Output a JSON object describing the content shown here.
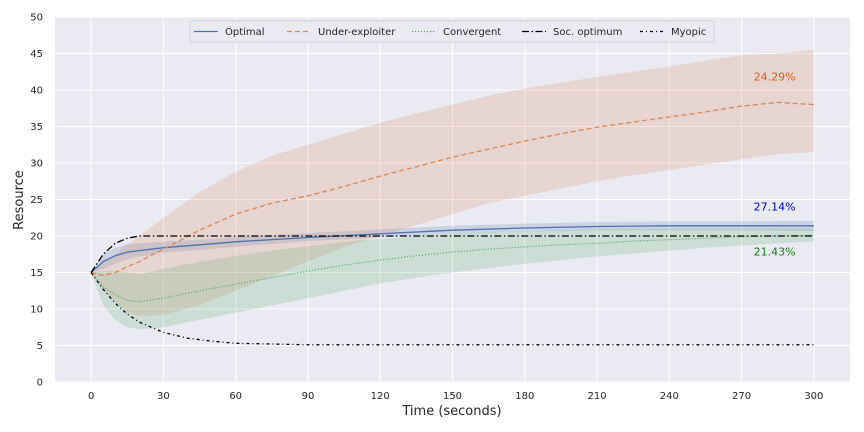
{
  "chart_data": {
    "type": "line",
    "title": "",
    "xlabel": "Time (seconds)",
    "ylabel": "Resource",
    "xlim": [
      -15,
      315
    ],
    "ylim": [
      0,
      50
    ],
    "xticks": [
      0,
      30,
      60,
      90,
      120,
      150,
      180,
      210,
      240,
      270,
      300
    ],
    "yticks": [
      0,
      5,
      10,
      15,
      20,
      25,
      30,
      35,
      40,
      45,
      50
    ],
    "grid": true,
    "background": "#eaeaf2",
    "legend": {
      "placement": "top-center",
      "columns": 5
    },
    "series": [
      {
        "name": "Optimal",
        "color": "#4c72b0",
        "dash": "solid",
        "x": [
          0,
          5,
          10,
          15,
          20,
          30,
          45,
          60,
          90,
          120,
          150,
          180,
          210,
          240,
          270,
          300
        ],
        "y": [
          15,
          16.5,
          17.3,
          17.8,
          18.0,
          18.4,
          18.8,
          19.2,
          19.8,
          20.3,
          20.8,
          21.1,
          21.3,
          21.4,
          21.4,
          21.4
        ],
        "band_low": [
          15,
          15.5,
          16.2,
          16.8,
          17.2,
          17.7,
          18.1,
          18.5,
          19.3,
          19.8,
          20.3,
          20.6,
          20.8,
          20.8,
          20.8,
          20.7
        ],
        "band_high": [
          15,
          17.5,
          18.4,
          18.9,
          19.0,
          19.2,
          19.5,
          19.9,
          20.4,
          20.9,
          21.4,
          21.7,
          21.9,
          22.0,
          22.0,
          22.1
        ]
      },
      {
        "name": "Under-exploiter",
        "color": "#dd8452",
        "dash": "dashed",
        "x": [
          0,
          5,
          10,
          15,
          20,
          30,
          45,
          60,
          75,
          90,
          105,
          120,
          135,
          150,
          165,
          180,
          195,
          210,
          225,
          240,
          255,
          270,
          285,
          300
        ],
        "y": [
          15,
          14.6,
          15.0,
          15.8,
          16.5,
          18.2,
          20.8,
          23.0,
          24.5,
          25.5,
          26.8,
          28.2,
          29.5,
          30.8,
          31.9,
          33.0,
          34.0,
          34.9,
          35.6,
          36.3,
          37.0,
          37.8,
          38.3,
          38.0
        ],
        "band_low": [
          15,
          12.5,
          11.0,
          9.5,
          9.0,
          9.2,
          10.5,
          12.5,
          14.5,
          16.5,
          18.5,
          20.0,
          21.5,
          23.0,
          24.5,
          25.5,
          26.5,
          27.5,
          28.3,
          29.0,
          29.8,
          30.5,
          31.2,
          31.5
        ],
        "band_high": [
          15,
          16.5,
          17.5,
          18.8,
          20.0,
          22.5,
          26.0,
          28.8,
          31.0,
          32.5,
          34.0,
          35.5,
          36.8,
          38.0,
          39.2,
          40.2,
          41.0,
          41.8,
          42.5,
          43.2,
          44.0,
          44.8,
          45.0,
          45.5
        ]
      },
      {
        "name": "Convergent",
        "color": "#55a868",
        "dash": "dotted",
        "x": [
          0,
          5,
          10,
          15,
          20,
          30,
          45,
          60,
          75,
          90,
          105,
          120,
          135,
          150,
          165,
          180,
          195,
          210,
          225,
          240,
          255,
          270,
          285,
          300
        ],
        "y": [
          15,
          13.0,
          12.0,
          11.2,
          11.0,
          11.5,
          12.5,
          13.4,
          14.3,
          15.2,
          16.0,
          16.7,
          17.3,
          17.8,
          18.2,
          18.5,
          18.8,
          19.0,
          19.3,
          19.5,
          19.7,
          19.9,
          20.0,
          20.1
        ],
        "band_low": [
          15,
          10.5,
          8.5,
          7.5,
          7.2,
          7.5,
          8.5,
          9.5,
          10.5,
          11.5,
          12.5,
          13.5,
          14.3,
          15.0,
          15.6,
          16.2,
          16.7,
          17.2,
          17.6,
          18.0,
          18.4,
          18.7,
          19.0,
          19.2
        ],
        "band_high": [
          15,
          15.2,
          15.2,
          15.0,
          14.8,
          15.5,
          16.5,
          17.3,
          18.0,
          18.6,
          19.2,
          19.6,
          20.0,
          20.3,
          20.5,
          20.6,
          20.8,
          20.9,
          21.0,
          21.0,
          21.0,
          21.0,
          21.0,
          21.0
        ]
      },
      {
        "name": "Soc. optimum",
        "color": "#000000",
        "dash": "dashdot",
        "x": [
          0,
          5,
          10,
          15,
          20,
          25,
          30,
          60,
          90,
          120,
          150,
          180,
          210,
          240,
          270,
          300
        ],
        "y": [
          15,
          17.5,
          19.0,
          19.7,
          20.0,
          20.0,
          20.0,
          20.0,
          20.0,
          20.0,
          20.0,
          20.0,
          20.0,
          20.0,
          20.0,
          20.0
        ]
      },
      {
        "name": "Myopic",
        "color": "#000000",
        "dash": "densedashdot",
        "x": [
          0,
          5,
          10,
          15,
          20,
          30,
          40,
          50,
          60,
          75,
          90,
          120,
          150,
          180,
          210,
          240,
          270,
          300
        ],
        "y": [
          15,
          12.7,
          10.8,
          9.3,
          8.2,
          6.8,
          6.0,
          5.6,
          5.3,
          5.2,
          5.1,
          5.1,
          5.1,
          5.1,
          5.1,
          5.1,
          5.1,
          5.1
        ]
      }
    ],
    "annotations": [
      {
        "text": "24.29%",
        "x": 275,
        "y": 41.3,
        "color": "#dd5a1a"
      },
      {
        "text": "27.14%",
        "x": 275,
        "y": 23.5,
        "color": "#0000cc"
      },
      {
        "text": "21.43%",
        "x": 275,
        "y": 17.3,
        "color": "#1a7a1a"
      }
    ]
  }
}
